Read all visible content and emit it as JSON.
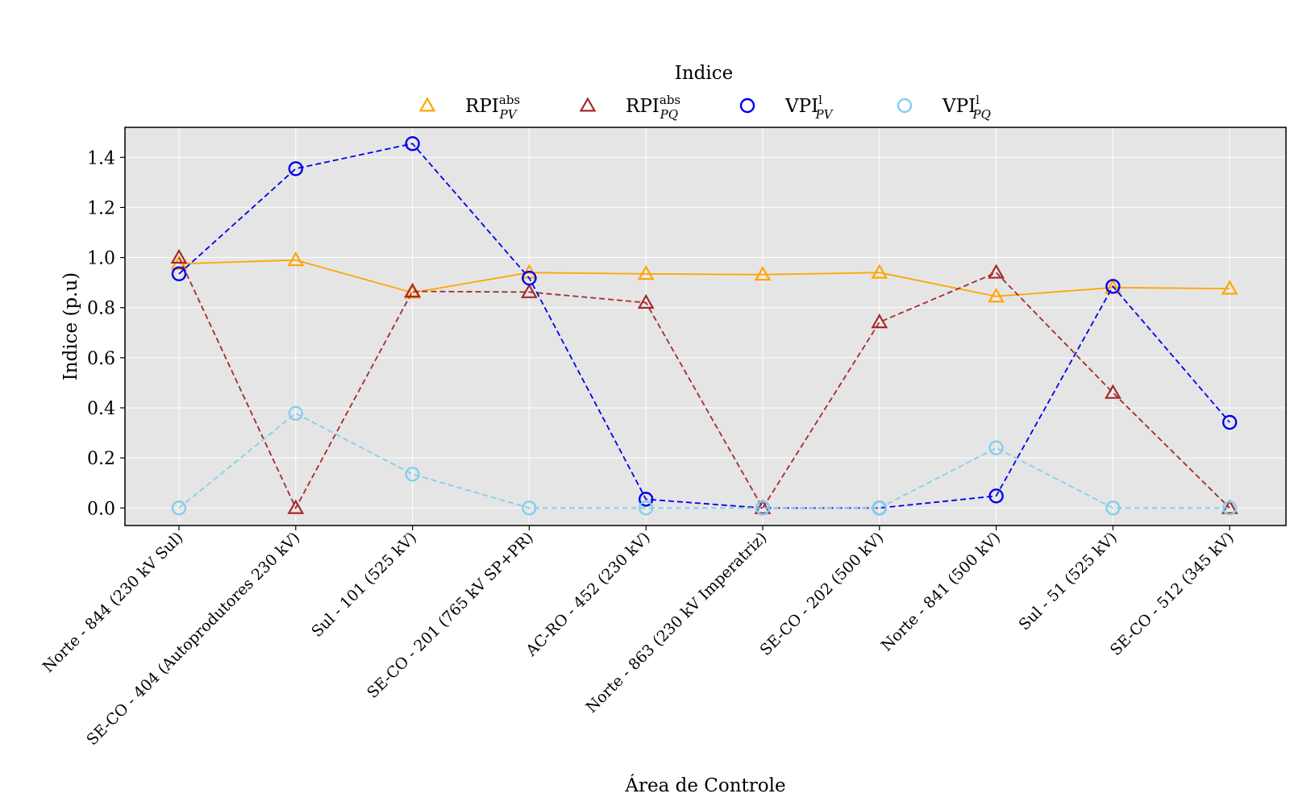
{
  "chart_data": {
    "type": "line",
    "xlabel": "Área de Controle",
    "ylabel": "Indice (p.u)",
    "ylim": [
      -0.07,
      1.52
    ],
    "yticks": [
      0.0,
      0.2,
      0.4,
      0.6,
      0.8,
      1.0,
      1.2,
      1.4
    ],
    "ytick_labels": [
      "0.0",
      "0.2",
      "0.4",
      "0.6",
      "0.8",
      "1.0",
      "1.2",
      "1.4"
    ],
    "grid": true,
    "legend": {
      "title": "Indice",
      "placement": "top-center"
    },
    "categories": [
      "Norte - 844 (230 kV Sul)",
      "SE-CO - 404 (Autoprodutores 230 kV)",
      "Sul - 101 (525 kV)",
      "SE-CO - 201 (765 kV SP+PR)",
      "AC-RO - 452 (230 kV)",
      "Norte - 863 (230 kV Imperatriz)",
      "SE-CO - 202 (500 kV)",
      "Norte - 841 (500 kV)",
      "Sul - 51 (525 kV)",
      "SE-CO - 512 (345 kV)"
    ],
    "series": [
      {
        "name": "RPI",
        "sup": "abs",
        "sub": "PV",
        "color": "#FFA500",
        "marker": "triangle",
        "line": "solid",
        "values": [
          0.975,
          0.99,
          0.86,
          0.94,
          0.935,
          0.932,
          0.94,
          0.845,
          0.88,
          0.876
        ]
      },
      {
        "name": "RPI",
        "sup": "abs",
        "sub": "PQ",
        "color": "#A52A2A",
        "marker": "triangle",
        "line": "dashed",
        "values": [
          1.0,
          0.0,
          0.865,
          0.862,
          0.82,
          0.0,
          0.742,
          0.94,
          0.46,
          0.0
        ]
      },
      {
        "name": "VPI",
        "sup": "l",
        "sub": "PV",
        "color": "#0000EE",
        "marker": "circle",
        "line": "dashed",
        "values": [
          0.935,
          1.355,
          1.455,
          0.918,
          0.035,
          0.0,
          0.0,
          0.048,
          0.885,
          0.342
        ]
      },
      {
        "name": "VPI",
        "sup": "l",
        "sub": "PQ",
        "color": "#87CEEB",
        "marker": "circle",
        "line": "dashed",
        "values": [
          0.0,
          0.378,
          0.135,
          0.0,
          0.0,
          0.0,
          0.0,
          0.24,
          0.0,
          0.0
        ]
      }
    ]
  }
}
